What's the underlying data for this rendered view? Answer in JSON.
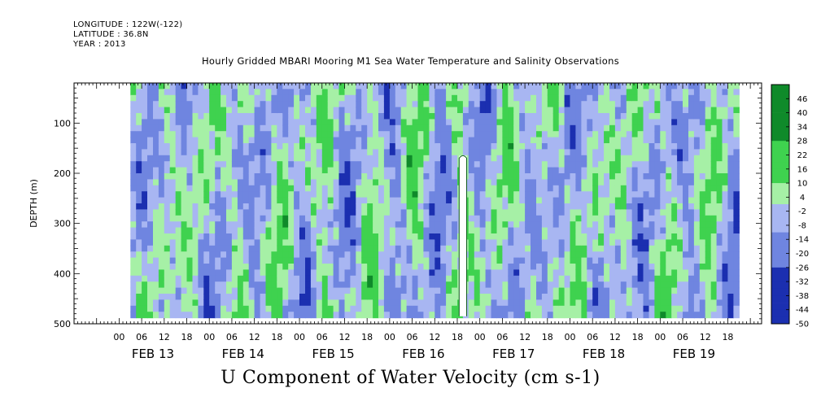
{
  "header": {
    "longitude": "LONGITUDE : 122W(-122)",
    "latitude": "LATITUDE : 36.8N",
    "year": "YEAR : 2013"
  },
  "chart_data": {
    "type": "heatmap",
    "title": "Hourly Gridded MBARI Mooring M1 Sea Water Temperature and Salinity Observations",
    "xlabel": "U Component of Water Velocity (cm s-1)",
    "ylabel": "DEPTH (m)",
    "ylim": [
      500,
      20
    ],
    "y_ticks": [
      100,
      200,
      300,
      400,
      500
    ],
    "x_hour_ticks": [
      "00",
      "06",
      "12",
      "18",
      "00",
      "06",
      "12",
      "18",
      "00",
      "06",
      "12",
      "18",
      "00",
      "06",
      "12",
      "18",
      "00",
      "06",
      "12",
      "18",
      "00",
      "06",
      "12",
      "18",
      "00",
      "06",
      "12",
      "18"
    ],
    "x_day_labels": [
      "FEB 13",
      "FEB 14",
      "FEB 15",
      "FEB 16",
      "FEB 17",
      "FEB 18",
      "FEB 19"
    ],
    "data_start_hour": 3,
    "data_end_hour": 165,
    "data_max_depth": 485,
    "colorbar": {
      "labels": [
        "46",
        "40",
        "34",
        "28",
        "22",
        "16",
        "10",
        "4",
        "-2",
        "-8",
        "-14",
        "-20",
        "-26",
        "-32",
        "-38",
        "-44",
        "-50"
      ],
      "range": [
        -50,
        52
      ]
    },
    "colors": {
      "neg_strong": "#1b2fb0",
      "neg_mid": "#6f85e0",
      "neg_weak": "#a8b6f2",
      "pos_weak": "#a6f0a6",
      "pos_mid": "#3fd24f",
      "pos_strong": "#0f8a2a"
    }
  }
}
